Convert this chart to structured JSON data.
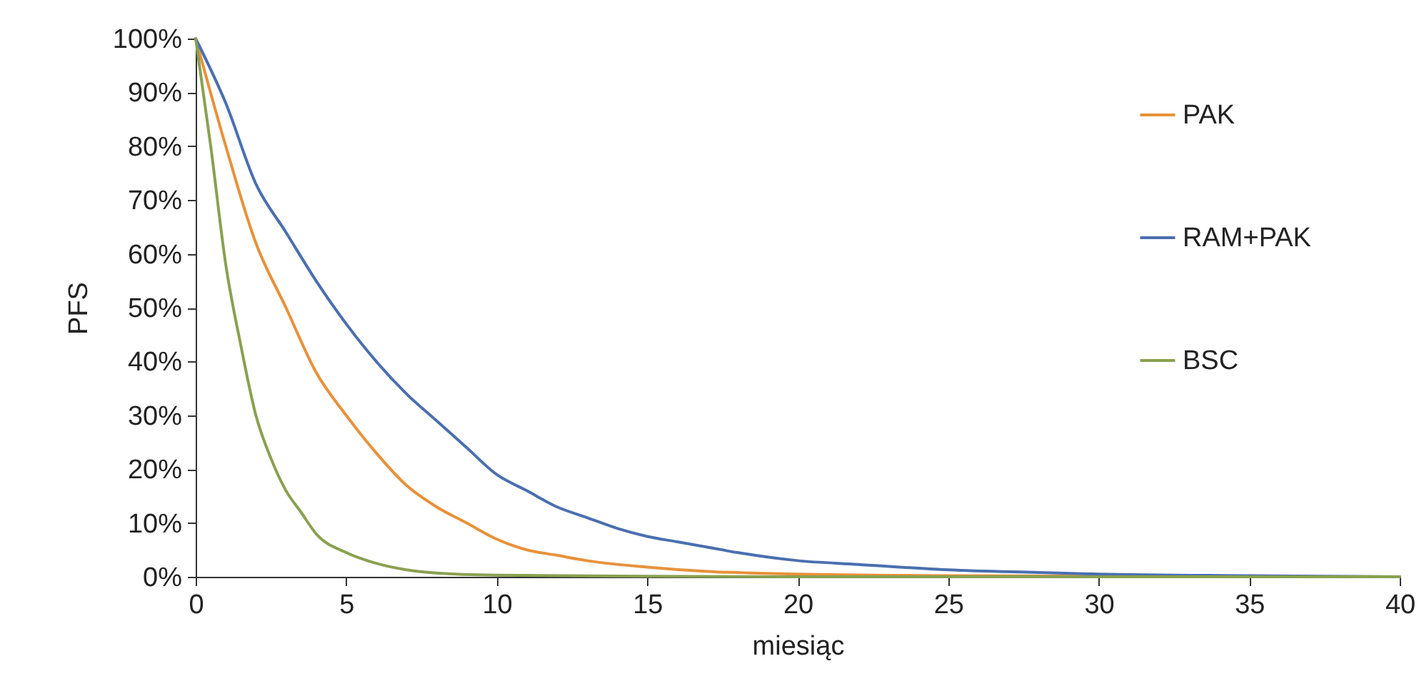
{
  "chart_data": {
    "type": "line",
    "xlabel": "miesiąc",
    "ylabel": "PFS",
    "xlim": [
      0,
      40
    ],
    "xticks": [
      0,
      5,
      10,
      15,
      20,
      25,
      30,
      35,
      40
    ],
    "ylim": [
      0,
      100
    ],
    "yticks": [
      {
        "value": 0,
        "label": "0%"
      },
      {
        "value": 10,
        "label": "10%"
      },
      {
        "value": 20,
        "label": "20%"
      },
      {
        "value": 30,
        "label": "30%"
      },
      {
        "value": 40,
        "label": "40%"
      },
      {
        "value": 50,
        "label": "50%"
      },
      {
        "value": 60,
        "label": "60%"
      },
      {
        "value": 70,
        "label": "70%"
      },
      {
        "value": 80,
        "label": "80%"
      },
      {
        "value": 90,
        "label": "90%"
      },
      {
        "value": 100,
        "label": "100%"
      }
    ],
    "grid": false,
    "legend": "right",
    "marker": "none",
    "line_style": "solid",
    "series": [
      {
        "name": "PAK",
        "color": "#e8913a",
        "x": [
          0,
          1,
          2,
          3,
          4,
          5,
          6,
          7,
          8,
          9,
          10,
          11,
          12,
          13,
          15,
          17,
          20,
          25,
          30,
          40
        ],
        "values": [
          100,
          80,
          62,
          50,
          38,
          30,
          23,
          17,
          13,
          10,
          7,
          5,
          4,
          3,
          1.8,
          1,
          0.5,
          0.2,
          0.1,
          0
        ]
      },
      {
        "name": "RAM+PAK",
        "color": "#4a6fb0",
        "x": [
          0,
          1,
          2,
          3,
          4,
          5,
          6,
          7,
          8,
          9,
          10,
          11,
          12,
          13,
          14,
          15,
          16,
          17,
          18,
          20,
          22,
          25,
          28,
          30,
          35,
          40
        ],
        "values": [
          100,
          88,
          73,
          64,
          55,
          47,
          40,
          34,
          29,
          24,
          19,
          16,
          13,
          11,
          9,
          7.5,
          6.5,
          5.5,
          4.5,
          3,
          2.3,
          1.3,
          0.8,
          0.5,
          0.2,
          0
        ]
      },
      {
        "name": "BSC",
        "color": "#8aa050",
        "x": [
          0,
          0.5,
          1,
          1.5,
          2,
          2.5,
          3,
          3.5,
          4,
          5,
          6,
          7,
          8,
          10,
          15,
          20,
          40
        ],
        "values": [
          100,
          80,
          58,
          43,
          30,
          22,
          16,
          12,
          8,
          4.5,
          2.5,
          1.3,
          0.7,
          0.3,
          0.1,
          0,
          0
        ]
      }
    ]
  }
}
